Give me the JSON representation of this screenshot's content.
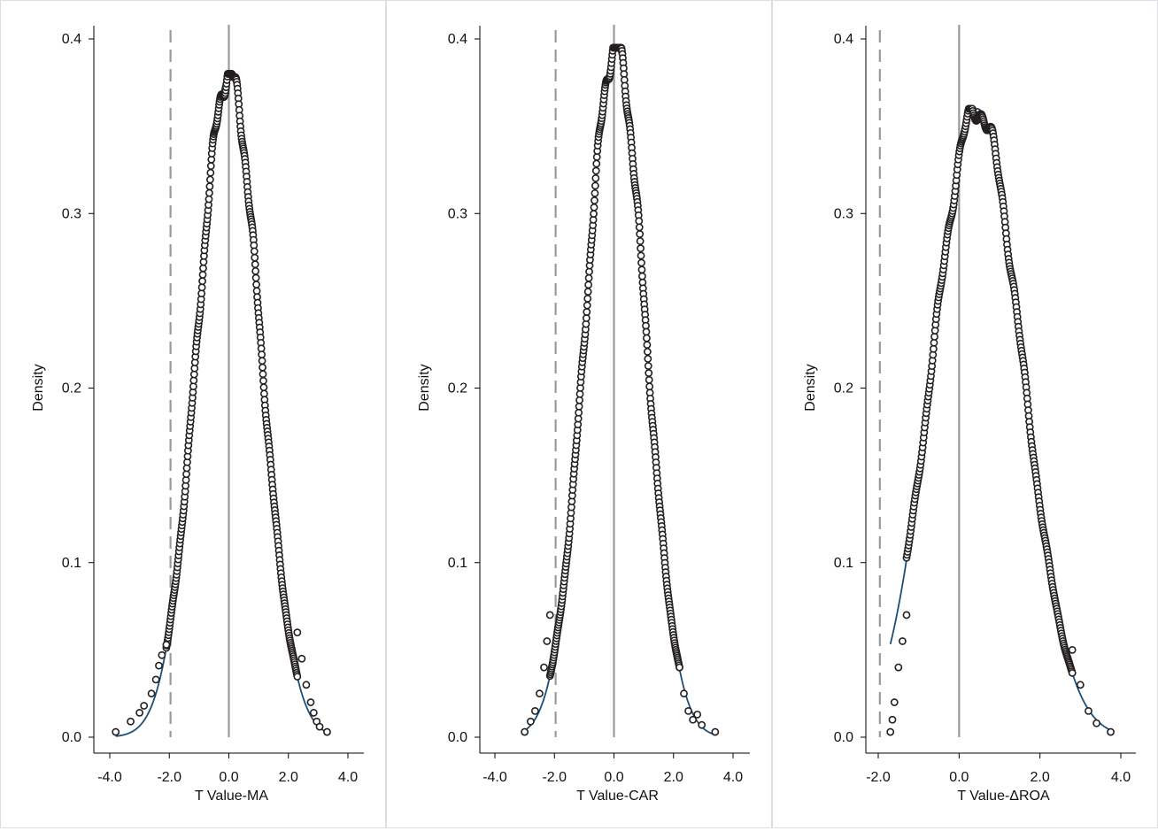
{
  "chart_data": [
    {
      "type": "scatter",
      "xlabel": "T Value-MA",
      "ylabel": "Density",
      "xlim": [
        -4.0,
        4.0
      ],
      "ylim": [
        0.0,
        0.4
      ],
      "xticks": [
        "-4.0",
        "-2.0",
        "0.0",
        "2.0",
        "4.0"
      ],
      "yticks": [
        "0.0",
        "0.1",
        "0.2",
        "0.3",
        "0.4"
      ],
      "reference_lines": {
        "dashed": -1.96,
        "solid": 0.0
      },
      "observed_range": [
        -3.8,
        3.3
      ],
      "peak": {
        "x": 0.0,
        "y": 0.38
      },
      "spread": 1.05,
      "fit_curve": "normal",
      "series": [
        {
          "marker": "hollow-circle",
          "points": [
            [
              -3.8,
              0.003
            ],
            [
              -3.3,
              0.009
            ],
            [
              -3.0,
              0.014
            ],
            [
              -2.85,
              0.018
            ],
            [
              -2.6,
              0.025
            ],
            [
              -2.45,
              0.033
            ],
            [
              -2.35,
              0.041
            ],
            [
              -2.25,
              0.047
            ],
            [
              -2.1,
              0.053
            ]
          ]
        },
        {
          "marker": "hollow-circle",
          "points": [
            [
              2.3,
              0.06
            ],
            [
              2.45,
              0.045
            ],
            [
              2.6,
              0.03
            ],
            [
              2.75,
              0.02
            ],
            [
              2.85,
              0.014
            ],
            [
              2.95,
              0.009
            ],
            [
              3.05,
              0.006
            ],
            [
              3.3,
              0.003
            ]
          ]
        }
      ],
      "colors": {
        "marker": "#231f20",
        "fit": "#1a4f7a",
        "ref": "#9a9a9a"
      }
    },
    {
      "type": "scatter",
      "xlabel": "T Value-CAR",
      "ylabel": "Density",
      "xlim": [
        -4.0,
        4.0
      ],
      "ylim": [
        0.0,
        0.4
      ],
      "xticks": [
        "-4.0",
        "-2.0",
        "0.0",
        "2.0",
        "4.0"
      ],
      "yticks": [
        "0.0",
        "0.1",
        "0.2",
        "0.3",
        "0.4"
      ],
      "reference_lines": {
        "dashed": -1.96,
        "solid": 0.0
      },
      "observed_range": [
        -3.0,
        3.4
      ],
      "peak": {
        "x": 0.05,
        "y": 0.395
      },
      "spread": 1.0,
      "fit_curve": "normal",
      "series": [
        {
          "marker": "hollow-circle",
          "points": [
            [
              -3.0,
              0.003
            ],
            [
              -2.8,
              0.009
            ],
            [
              -2.65,
              0.015
            ],
            [
              -2.5,
              0.025
            ],
            [
              -2.35,
              0.04
            ],
            [
              -2.25,
              0.055
            ],
            [
              -2.15,
              0.07
            ]
          ]
        },
        {
          "marker": "hollow-circle",
          "points": [
            [
              2.2,
              0.04
            ],
            [
              2.35,
              0.025
            ],
            [
              2.5,
              0.015
            ],
            [
              2.65,
              0.01
            ],
            [
              2.8,
              0.013
            ],
            [
              2.95,
              0.007
            ],
            [
              3.4,
              0.003
            ]
          ]
        }
      ],
      "colors": {
        "marker": "#231f20",
        "fit": "#1a4f7a",
        "ref": "#9a9a9a"
      }
    },
    {
      "type": "scatter",
      "xlabel": "T Value-ΔROA",
      "ylabel": "Density",
      "xlim": [
        -2.0,
        4.0
      ],
      "ylim": [
        0.0,
        0.4
      ],
      "xticks": [
        "-2.0",
        "0.0",
        "2.0",
        "4.0"
      ],
      "yticks": [
        "0.0",
        "0.1",
        "0.2",
        "0.3",
        "0.4"
      ],
      "reference_lines": {
        "dashed": -1.96,
        "solid": 0.0
      },
      "observed_range": [
        -1.7,
        3.75
      ],
      "peak": {
        "x": 0.45,
        "y": 0.36
      },
      "spread": 1.1,
      "fit_curve": "normal",
      "series": [
        {
          "marker": "hollow-circle",
          "points": [
            [
              -1.7,
              0.003
            ],
            [
              -1.65,
              0.01
            ],
            [
              -1.6,
              0.02
            ],
            [
              -1.5,
              0.04
            ],
            [
              -1.4,
              0.055
            ],
            [
              -1.3,
              0.07
            ]
          ]
        },
        {
          "marker": "hollow-circle",
          "points": [
            [
              2.8,
              0.05
            ],
            [
              3.0,
              0.03
            ],
            [
              3.2,
              0.015
            ],
            [
              3.4,
              0.008
            ],
            [
              3.75,
              0.003
            ]
          ]
        }
      ],
      "colors": {
        "marker": "#231f20",
        "fit": "#1a4f7a",
        "ref": "#9a9a9a"
      }
    }
  ]
}
